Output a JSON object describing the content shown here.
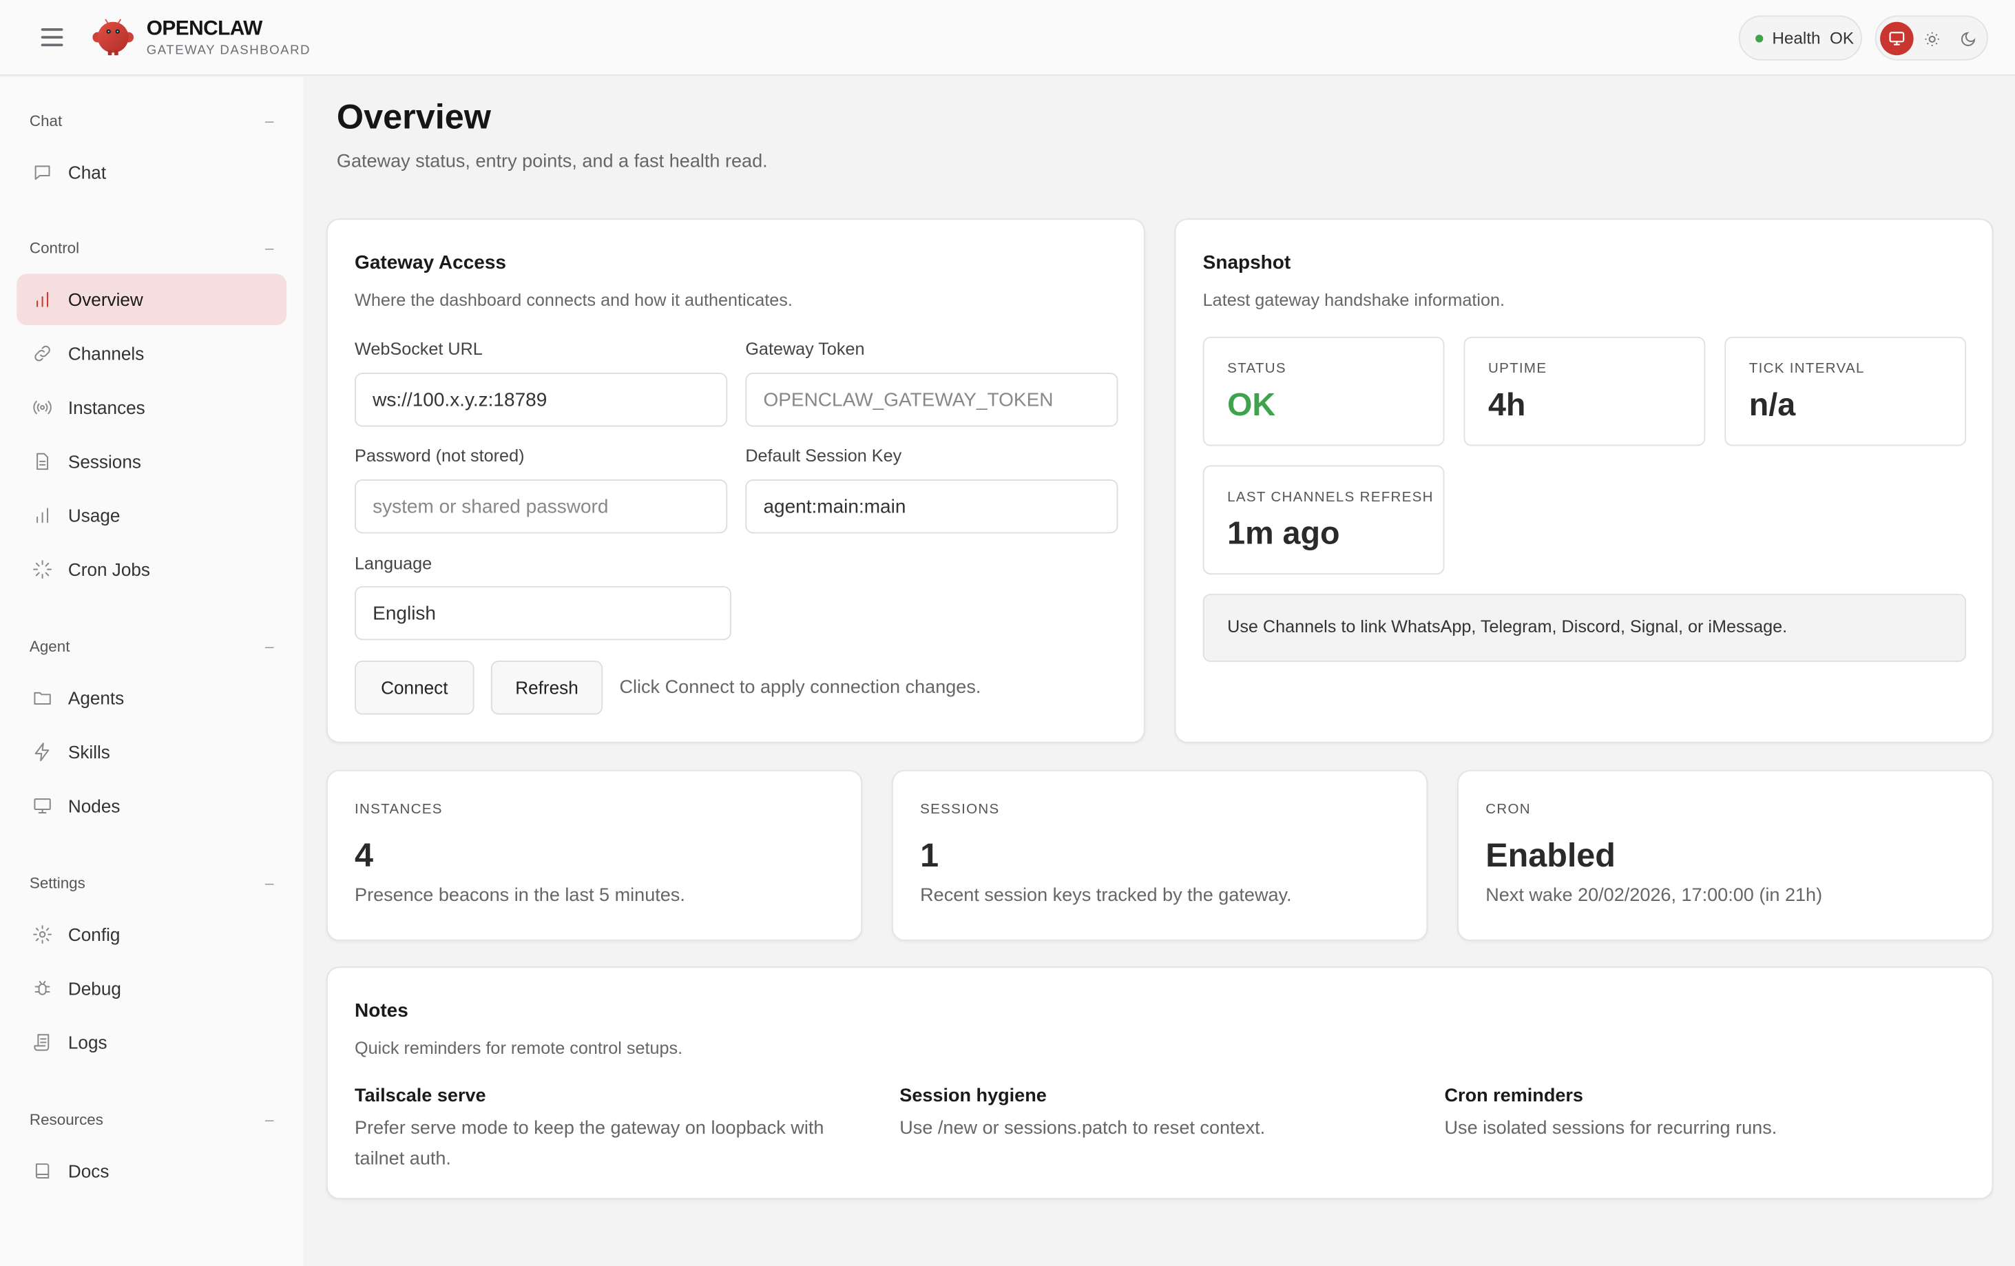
{
  "header": {
    "brand": "OPENCLAW",
    "subtitle": "GATEWAY DASHBOARD",
    "health_label": "Health",
    "health_value": "OK",
    "health_color": "#3fa34d",
    "accent": "#c9362f",
    "theme_options": [
      "monitor-icon",
      "sun-icon",
      "moon-icon"
    ],
    "active_theme": "system"
  },
  "sidebar": {
    "sections": [
      {
        "title": "Chat",
        "items": [
          {
            "label": "Chat",
            "icon": "message-icon"
          }
        ]
      },
      {
        "title": "Control",
        "items": [
          {
            "label": "Overview",
            "icon": "bar-chart-icon",
            "active": true
          },
          {
            "label": "Channels",
            "icon": "link-icon"
          },
          {
            "label": "Instances",
            "icon": "radio-icon"
          },
          {
            "label": "Sessions",
            "icon": "file-icon"
          },
          {
            "label": "Usage",
            "icon": "bar-chart-icon"
          },
          {
            "label": "Cron Jobs",
            "icon": "loader-icon"
          }
        ]
      },
      {
        "title": "Agent",
        "items": [
          {
            "label": "Agents",
            "icon": "folder-icon"
          },
          {
            "label": "Skills",
            "icon": "zap-icon"
          },
          {
            "label": "Nodes",
            "icon": "monitor-icon"
          }
        ]
      },
      {
        "title": "Settings",
        "items": [
          {
            "label": "Config",
            "icon": "gear-icon"
          },
          {
            "label": "Debug",
            "icon": "bug-icon"
          },
          {
            "label": "Logs",
            "icon": "scroll-icon"
          }
        ]
      },
      {
        "title": "Resources",
        "items": [
          {
            "label": "Docs",
            "icon": "book-icon"
          }
        ]
      }
    ],
    "collapse_glyph": "–"
  },
  "page": {
    "title": "Overview",
    "subtitle": "Gateway status, entry points, and a fast health read."
  },
  "access": {
    "title": "Gateway Access",
    "subtitle": "Where the dashboard connects and how it authenticates.",
    "ws_label": "WebSocket URL",
    "ws_value": "ws://100.x.y.z:18789",
    "token_label": "Gateway Token",
    "token_placeholder": "OPENCLAW_GATEWAY_TOKEN",
    "password_label": "Password (not stored)",
    "password_placeholder": "system or shared password",
    "session_label": "Default Session Key",
    "session_value": "agent:main:main",
    "language_label": "Language",
    "language_value": "English",
    "connect": "Connect",
    "refresh": "Refresh",
    "hint": "Click Connect to apply connection changes."
  },
  "snapshot": {
    "title": "Snapshot",
    "subtitle": "Latest gateway handshake information.",
    "stats": [
      {
        "label": "STATUS",
        "value": "OK"
      },
      {
        "label": "UPTIME",
        "value": "4h"
      },
      {
        "label": "TICK INTERVAL",
        "value": "n/a"
      },
      {
        "label": "LAST CHANNELS REFRESH",
        "value": "1m ago"
      }
    ],
    "callout": "Use Channels to link WhatsApp, Telegram, Discord, Signal, or iMessage."
  },
  "summary": [
    {
      "label": "INSTANCES",
      "value": "4",
      "desc": "Presence beacons in the last 5 minutes."
    },
    {
      "label": "SESSIONS",
      "value": "1",
      "desc": "Recent session keys tracked by the gateway."
    },
    {
      "label": "CRON",
      "value": "Enabled",
      "desc": "Next wake 20/02/2026, 17:00:00 (in 21h)"
    }
  ],
  "notes": {
    "title": "Notes",
    "subtitle": "Quick reminders for remote control setups.",
    "items": [
      {
        "title": "Tailscale serve",
        "desc": "Prefer serve mode to keep the gateway on loopback with tailnet auth."
      },
      {
        "title": "Session hygiene",
        "desc": "Use /new or sessions.patch to reset context."
      },
      {
        "title": "Cron reminders",
        "desc": "Use isolated sessions for recurring runs."
      }
    ]
  }
}
